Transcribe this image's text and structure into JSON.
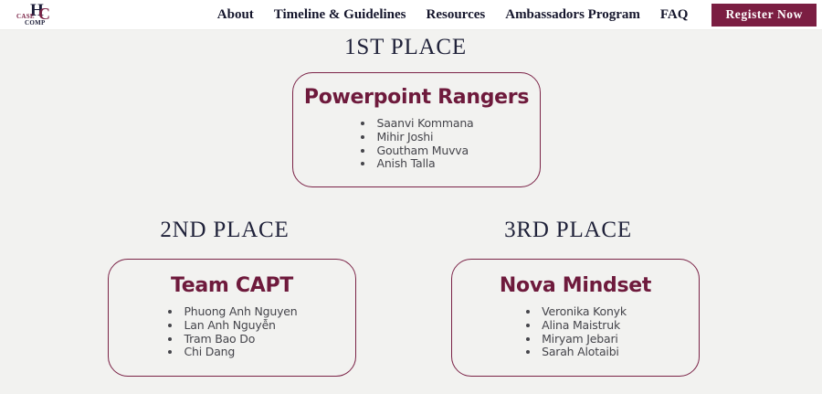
{
  "header": {
    "logo": {
      "h": "H",
      "c": "C",
      "case": "CASE",
      "comp": "COMP"
    },
    "nav_items": [
      {
        "label": "About"
      },
      {
        "label": "Timeline & Guidelines"
      },
      {
        "label": "Resources"
      },
      {
        "label": "Ambassadors Program"
      },
      {
        "label": "FAQ"
      }
    ],
    "register_button": "Register Now"
  },
  "colors": {
    "maroon": "#7b1e42",
    "navy": "#1c1d38",
    "page_bg": "#f2f2f0",
    "header_bg": "#ffffff"
  },
  "results": [
    {
      "place": "1ST PLACE",
      "team": "Powerpoint Rangers",
      "members": [
        "Saanvi Kommana",
        "Mihir Joshi",
        "Goutham Muvva",
        "Anish Talla"
      ]
    },
    {
      "place": "2ND PLACE",
      "team": "Team CAPT",
      "members": [
        "Phuong Anh Nguyen",
        "Lan Anh Nguyễn",
        "Tram Bao Do",
        "Chi Dang"
      ]
    },
    {
      "place": "3RD PLACE",
      "team": "Nova Mindset",
      "members": [
        "Veronika Konyk",
        "Alina Maistruk",
        "Miryam Jebari",
        "Sarah Alotaibi"
      ]
    }
  ]
}
